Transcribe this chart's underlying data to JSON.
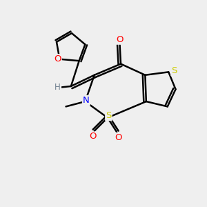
{
  "background_color": "#efefef",
  "bond_color": "#000000",
  "atom_colors": {
    "O": "#ff0000",
    "S": "#cccc00",
    "N": "#0000ff",
    "H": "#708090",
    "C": "#000000"
  },
  "figsize": [
    3.0,
    3.0
  ],
  "dpi": 100
}
